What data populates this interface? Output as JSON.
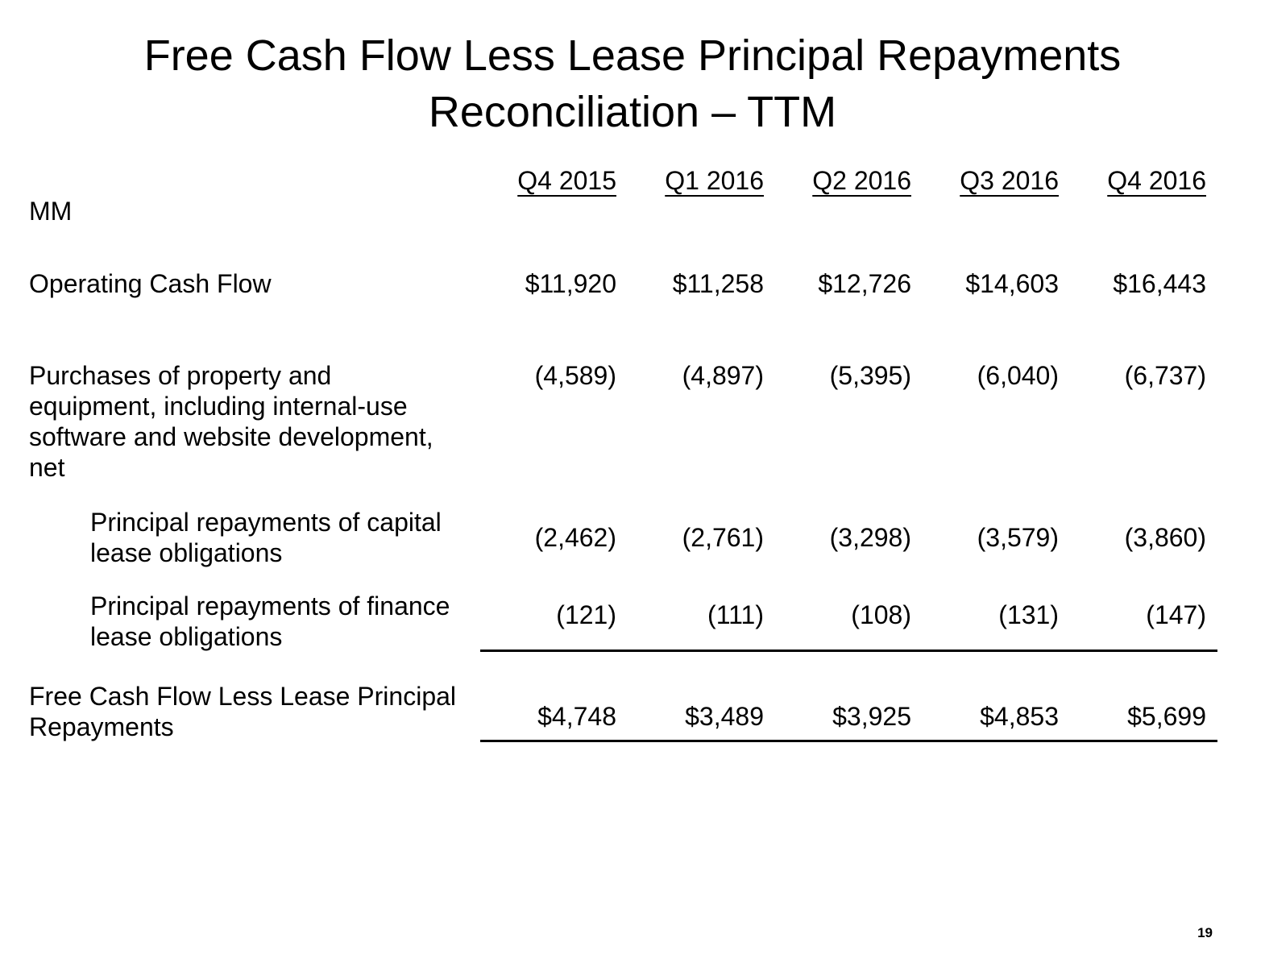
{
  "page": {
    "title_line1": "Free Cash Flow Less Lease Principal Repayments",
    "title_line2": "Reconciliation – TTM",
    "unit_label": "MM",
    "page_number": "19"
  },
  "table": {
    "columns": [
      "Q4 2015",
      "Q1 2016",
      "Q2 2016",
      "Q3 2016",
      "Q4 2016"
    ],
    "rows": [
      {
        "label": "Operating Cash Flow",
        "values": [
          "$11,920",
          "$11,258",
          "$12,726",
          "$14,603",
          "$16,443"
        ]
      },
      {
        "label": "Purchases of property and equipment, including internal-use software and website development, net",
        "values": [
          "(4,589)",
          "(4,897)",
          "(5,395)",
          "(6,040)",
          "(6,737)"
        ]
      },
      {
        "label": "Principal repayments of capital lease obligations",
        "values": [
          "(2,462)",
          "(2,761)",
          "(3,298)",
          "(3,579)",
          "(3,860)"
        ]
      },
      {
        "label": "Principal repayments of finance lease obligations",
        "values": [
          "(121)",
          "(111)",
          "(108)",
          "(131)",
          "(147)"
        ]
      },
      {
        "label": "Free Cash Flow Less Lease Principal Repayments",
        "values": [
          "$4,748",
          "$3,489",
          "$3,925",
          "$4,853",
          "$5,699"
        ]
      }
    ]
  },
  "chart_data": {
    "type": "table",
    "title": "Free Cash Flow Less Lease Principal Repayments Reconciliation – TTM",
    "unit": "MM",
    "categories": [
      "Q4 2015",
      "Q1 2016",
      "Q2 2016",
      "Q3 2016",
      "Q4 2016"
    ],
    "series": [
      {
        "name": "Operating Cash Flow",
        "values": [
          11920,
          11258,
          12726,
          14603,
          16443
        ]
      },
      {
        "name": "Purchases of property and equipment, including internal-use software and website development, net",
        "values": [
          -4589,
          -4897,
          -5395,
          -6040,
          -6737
        ]
      },
      {
        "name": "Principal repayments of capital lease obligations",
        "values": [
          -2462,
          -2761,
          -3298,
          -3579,
          -3860
        ]
      },
      {
        "name": "Principal repayments of finance lease obligations",
        "values": [
          -121,
          -111,
          -108,
          -131,
          -147
        ]
      },
      {
        "name": "Free Cash Flow Less Lease Principal Repayments",
        "values": [
          4748,
          3489,
          3925,
          4853,
          5699
        ]
      }
    ]
  }
}
